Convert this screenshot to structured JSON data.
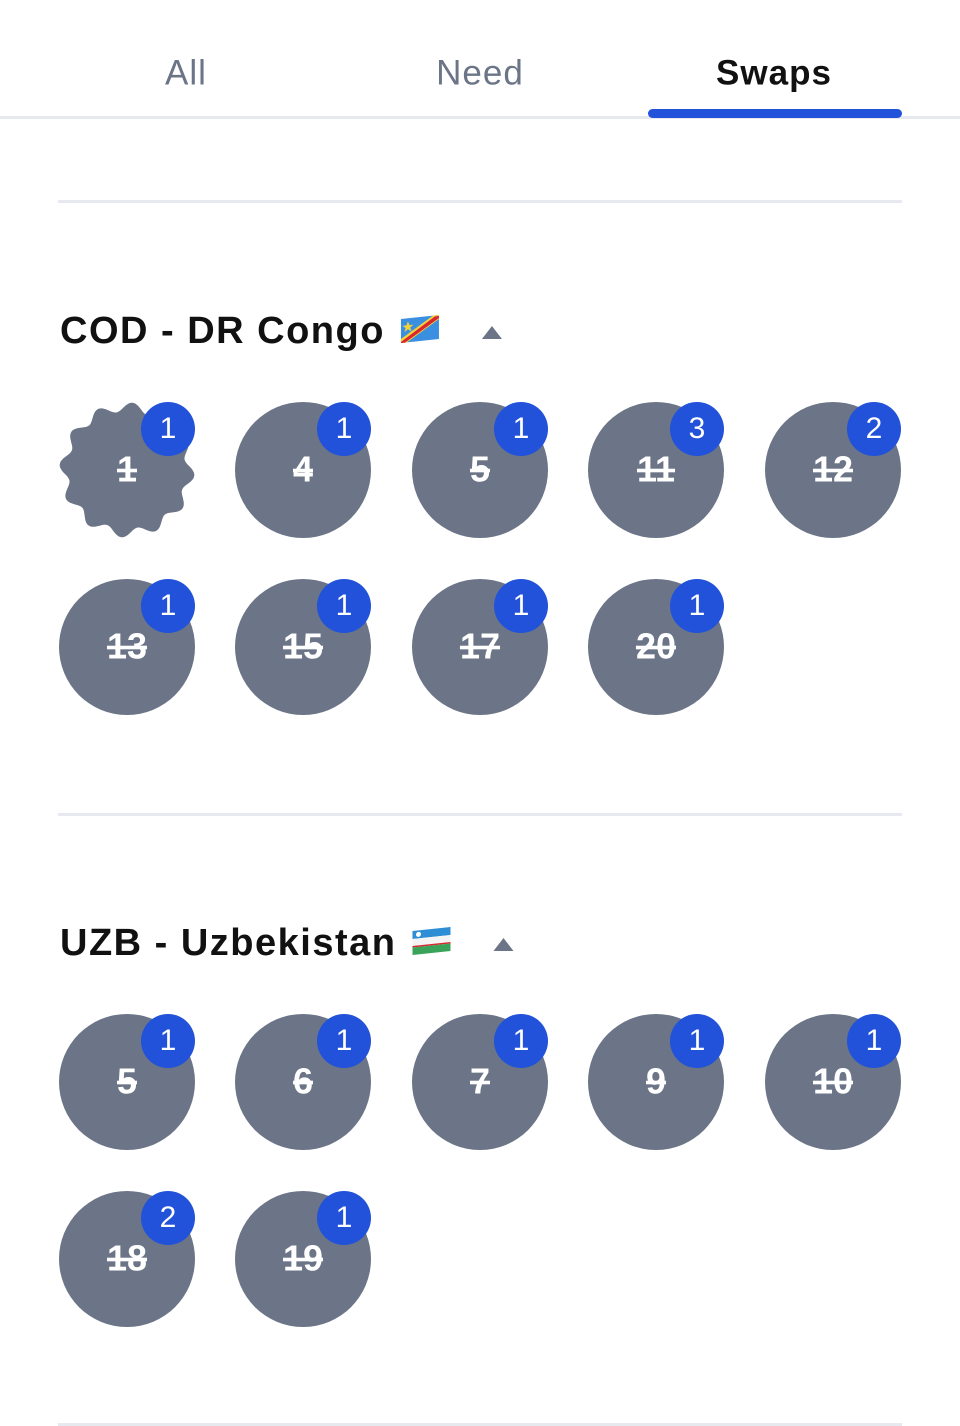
{
  "tabs": [
    {
      "label": "All"
    },
    {
      "label": "Need"
    },
    {
      "label": "Swaps",
      "selected": true
    }
  ],
  "sections": [
    {
      "title": "COD - DR Congo",
      "flag": "cod",
      "stickers": [
        {
          "number": 1,
          "count": 1,
          "shape": "scalloped"
        },
        {
          "number": 4,
          "count": 1
        },
        {
          "number": 5,
          "count": 1
        },
        {
          "number": 11,
          "count": 3
        },
        {
          "number": 12,
          "count": 2
        },
        {
          "number": 13,
          "count": 1
        },
        {
          "number": 15,
          "count": 1
        },
        {
          "number": 17,
          "count": 1
        },
        {
          "number": 20,
          "count": 1
        }
      ]
    },
    {
      "title": "UZB - Uzbekistan",
      "flag": "uzb",
      "stickers": [
        {
          "number": 5,
          "count": 1
        },
        {
          "number": 6,
          "count": 1
        },
        {
          "number": 7,
          "count": 1
        },
        {
          "number": 9,
          "count": 1
        },
        {
          "number": 10,
          "count": 1
        },
        {
          "number": 18,
          "count": 2
        },
        {
          "number": 19,
          "count": 1
        }
      ]
    }
  ]
}
